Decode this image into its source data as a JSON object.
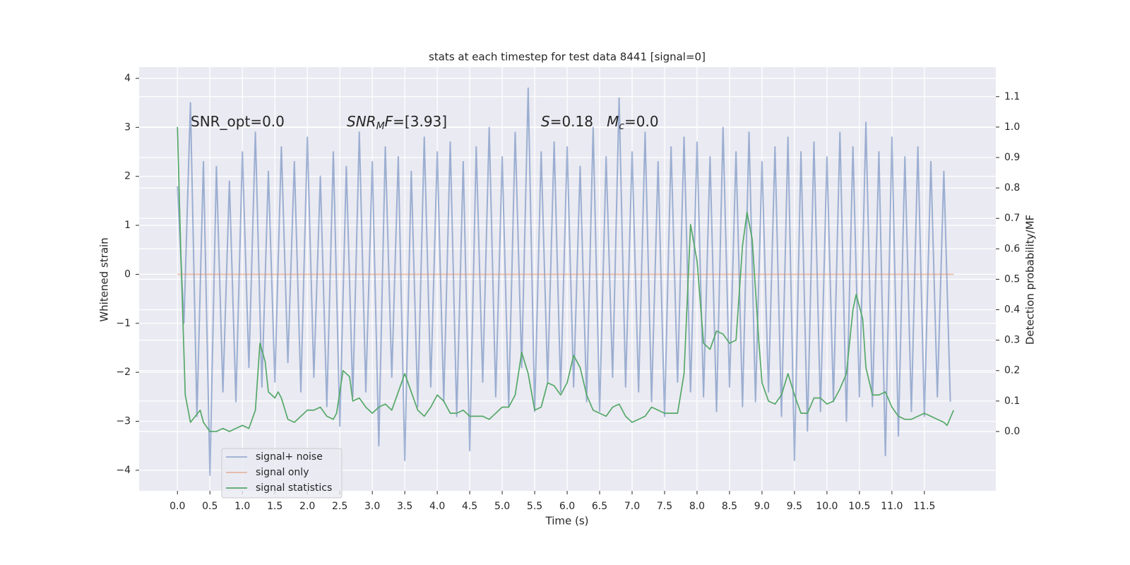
{
  "chart_data": {
    "type": "line",
    "title": "stats at each timestep for test data 8441 [signal=0]",
    "x_label": "Time (s)",
    "y_label": "Whitened strain",
    "y2_label": "Detection probability/MF",
    "xlim": [
      -0.59,
      12.6
    ],
    "ylim": [
      -4.42,
      4.23
    ],
    "y2lim": [
      -0.195,
      1.197
    ],
    "xticks": [
      {
        "value": 0,
        "label": "0.0"
      },
      0.5,
      {
        "value": 1,
        "label": "1.0"
      },
      1.5,
      {
        "value": 2,
        "label": "2.0"
      },
      2.5,
      {
        "value": 3,
        "label": "3.0"
      },
      3.5,
      {
        "value": 4,
        "label": "4.0"
      },
      4.5,
      {
        "value": 5,
        "label": "5.0"
      },
      5.5,
      {
        "value": 6,
        "label": "6.0"
      },
      6.5,
      {
        "value": 7,
        "label": "7.0"
      },
      7.5,
      {
        "value": 8,
        "label": "8.0"
      },
      8.5,
      {
        "value": 9,
        "label": "9.0"
      },
      9.5,
      {
        "value": 10,
        "label": "10.0"
      },
      10.5,
      {
        "value": 11,
        "label": "11.0"
      },
      11.5
    ],
    "yticks": [
      4,
      3,
      2,
      1,
      0,
      {
        "value": -1,
        "label": "−1"
      },
      {
        "value": -2,
        "label": "−2"
      },
      {
        "value": -3,
        "label": "−3"
      },
      {
        "value": -4,
        "label": "−4"
      }
    ],
    "y2ticks": [
      {
        "value": 0,
        "label": "0.0"
      },
      0.1,
      0.2,
      0.3,
      0.4,
      0.5,
      0.6,
      0.7,
      0.8,
      0.9,
      {
        "value": 1,
        "label": "1.0"
      },
      1.1
    ],
    "grid": true,
    "legend_loc": "lower left",
    "annotations": [
      {
        "parts": [
          {
            "text": "SNR_opt=0.0",
            "italic": false,
            "sub": false
          }
        ]
      },
      {
        "parts": [
          {
            "text": "SNR",
            "italic": true,
            "sub": false
          },
          {
            "text": "M",
            "italic": true,
            "sub": true
          },
          {
            "text": "F",
            "italic": true,
            "sub": false
          },
          {
            "text": "=[3.93]",
            "italic": false,
            "sub": false
          }
        ]
      },
      {
        "parts": [
          {
            "text": "S",
            "italic": true,
            "sub": false
          },
          {
            "text": "=0.18   ",
            "italic": false,
            "sub": false
          },
          {
            "text": "M",
            "italic": true,
            "sub": false
          },
          {
            "text": "c",
            "italic": true,
            "sub": true
          },
          {
            "text": "=0.0",
            "italic": false,
            "sub": false
          }
        ]
      }
    ],
    "series": [
      {
        "name": "signal+ noise",
        "color": "#4c72b0",
        "alpha": 0.5,
        "axis": "y",
        "x": [
          0.0,
          0.1,
          0.2,
          0.3,
          0.4,
          0.5,
          0.6,
          0.7,
          0.8,
          0.9,
          1.0,
          1.1,
          1.2,
          1.3,
          1.4,
          1.5,
          1.6,
          1.7,
          1.8,
          1.9,
          2.0,
          2.1,
          2.2,
          2.3,
          2.4,
          2.5,
          2.6,
          2.7,
          2.8,
          2.9,
          3.0,
          3.1,
          3.2,
          3.3,
          3.4,
          3.5,
          3.6,
          3.7,
          3.8,
          3.9,
          4.0,
          4.1,
          4.2,
          4.3,
          4.4,
          4.5,
          4.6,
          4.7,
          4.8,
          4.9,
          5.0,
          5.1,
          5.2,
          5.3,
          5.4,
          5.5,
          5.6,
          5.7,
          5.8,
          5.9,
          6.0,
          6.1,
          6.2,
          6.3,
          6.4,
          6.5,
          6.6,
          6.7,
          6.8,
          6.9,
          7.0,
          7.1,
          7.2,
          7.3,
          7.4,
          7.5,
          7.6,
          7.7,
          7.8,
          7.9,
          8.0,
          8.1,
          8.2,
          8.3,
          8.4,
          8.5,
          8.6,
          8.7,
          8.8,
          8.9,
          9.0,
          9.1,
          9.2,
          9.3,
          9.4,
          9.5,
          9.6,
          9.7,
          9.8,
          9.9,
          10.0,
          10.1,
          10.2,
          10.3,
          10.4,
          10.5,
          10.6,
          10.7,
          10.8,
          10.9,
          11.0,
          11.1,
          11.2,
          11.3,
          11.4,
          11.5,
          11.6,
          11.7,
          11.8,
          11.9
        ],
        "values": [
          1.8,
          -1.0,
          3.5,
          -2.9,
          2.3,
          -4.1,
          2.2,
          -2.4,
          1.9,
          -2.6,
          2.5,
          -1.9,
          2.9,
          -2.3,
          2.1,
          -2.2,
          2.6,
          -1.8,
          2.3,
          -2.4,
          2.8,
          -2.1,
          2.0,
          -2.7,
          2.5,
          -3.1,
          2.2,
          -2.5,
          2.9,
          -2.4,
          2.3,
          -3.5,
          2.6,
          -2.1,
          2.4,
          -3.8,
          2.1,
          -2.7,
          2.8,
          -2.3,
          2.5,
          -2.6,
          2.7,
          -2.9,
          2.3,
          -3.6,
          2.6,
          -2.2,
          3.0,
          -2.5,
          2.4,
          -2.7,
          2.9,
          -1.9,
          3.8,
          -2.8,
          2.5,
          -2.2,
          2.7,
          -2.4,
          2.6,
          -2.3,
          2.2,
          -2.6,
          3.0,
          -2.8,
          2.4,
          -2.1,
          3.6,
          -2.3,
          2.5,
          -2.4,
          2.9,
          -2.6,
          2.3,
          -2.9,
          2.6,
          -2.2,
          2.8,
          -2.4,
          2.7,
          -2.5,
          2.4,
          -2.8,
          3.0,
          -2.3,
          2.5,
          -2.7,
          2.9,
          -2.6,
          2.3,
          -2.4,
          2.6,
          -2.9,
          2.8,
          -3.8,
          2.5,
          -3.2,
          2.7,
          -2.8,
          2.4,
          -2.6,
          2.9,
          -3.0,
          2.6,
          -2.5,
          3.1,
          -2.7,
          2.5,
          -3.7,
          2.8,
          -3.3,
          2.4,
          -2.8,
          2.6,
          -2.9,
          2.3,
          -2.5,
          2.1,
          -2.6
        ]
      },
      {
        "name": "signal only",
        "color": "#dd8452",
        "alpha": 0.5,
        "axis": "y",
        "x": [
          0.0,
          11.95
        ],
        "values": [
          0.0,
          0.0
        ]
      },
      {
        "name": "signal statistics",
        "color": "#55a868",
        "alpha": 1,
        "axis": "y2",
        "x": [
          0.0,
          0.05,
          0.12,
          0.2,
          0.35,
          0.4,
          0.5,
          0.6,
          0.7,
          0.8,
          0.9,
          1.0,
          1.1,
          1.2,
          1.27,
          1.35,
          1.4,
          1.5,
          1.55,
          1.6,
          1.7,
          1.8,
          1.9,
          2.0,
          2.1,
          2.2,
          2.3,
          2.4,
          2.45,
          2.55,
          2.65,
          2.7,
          2.8,
          2.9,
          3.0,
          3.1,
          3.2,
          3.3,
          3.4,
          3.5,
          3.6,
          3.7,
          3.8,
          3.9,
          4.0,
          4.1,
          4.2,
          4.3,
          4.4,
          4.5,
          4.6,
          4.7,
          4.8,
          4.9,
          5.0,
          5.1,
          5.2,
          5.3,
          5.4,
          5.5,
          5.6,
          5.7,
          5.8,
          5.9,
          6.0,
          6.1,
          6.2,
          6.3,
          6.4,
          6.5,
          6.6,
          6.7,
          6.8,
          6.9,
          7.0,
          7.1,
          7.2,
          7.3,
          7.4,
          7.5,
          7.6,
          7.7,
          7.8,
          7.9,
          8.0,
          8.1,
          8.2,
          8.3,
          8.4,
          8.5,
          8.6,
          8.7,
          8.77,
          8.85,
          8.95,
          9.0,
          9.1,
          9.2,
          9.3,
          9.4,
          9.5,
          9.6,
          9.7,
          9.8,
          9.9,
          10.0,
          10.1,
          10.2,
          10.3,
          10.4,
          10.45,
          10.55,
          10.6,
          10.7,
          10.8,
          10.9,
          11.0,
          11.1,
          11.2,
          11.3,
          11.4,
          11.5,
          11.6,
          11.7,
          11.8,
          11.85,
          11.95
        ],
        "values": [
          1.0,
          0.6,
          0.12,
          0.03,
          0.07,
          0.03,
          0.0,
          0.0,
          0.01,
          0.0,
          0.01,
          0.02,
          0.01,
          0.07,
          0.29,
          0.23,
          0.13,
          0.11,
          0.13,
          0.11,
          0.04,
          0.03,
          0.05,
          0.07,
          0.07,
          0.08,
          0.05,
          0.04,
          0.06,
          0.2,
          0.18,
          0.1,
          0.11,
          0.08,
          0.06,
          0.08,
          0.09,
          0.07,
          0.13,
          0.19,
          0.13,
          0.07,
          0.05,
          0.08,
          0.12,
          0.1,
          0.06,
          0.06,
          0.07,
          0.05,
          0.05,
          0.05,
          0.04,
          0.06,
          0.08,
          0.08,
          0.12,
          0.26,
          0.19,
          0.07,
          0.08,
          0.16,
          0.15,
          0.12,
          0.16,
          0.25,
          0.21,
          0.12,
          0.07,
          0.06,
          0.05,
          0.08,
          0.09,
          0.05,
          0.03,
          0.04,
          0.05,
          0.08,
          0.07,
          0.06,
          0.06,
          0.06,
          0.19,
          0.68,
          0.56,
          0.29,
          0.27,
          0.33,
          0.32,
          0.29,
          0.3,
          0.61,
          0.72,
          0.63,
          0.3,
          0.16,
          0.1,
          0.09,
          0.12,
          0.19,
          0.12,
          0.06,
          0.06,
          0.11,
          0.11,
          0.09,
          0.1,
          0.14,
          0.19,
          0.4,
          0.45,
          0.37,
          0.21,
          0.12,
          0.12,
          0.13,
          0.08,
          0.05,
          0.04,
          0.04,
          0.05,
          0.06,
          0.05,
          0.04,
          0.03,
          0.02,
          0.07
        ]
      }
    ]
  }
}
